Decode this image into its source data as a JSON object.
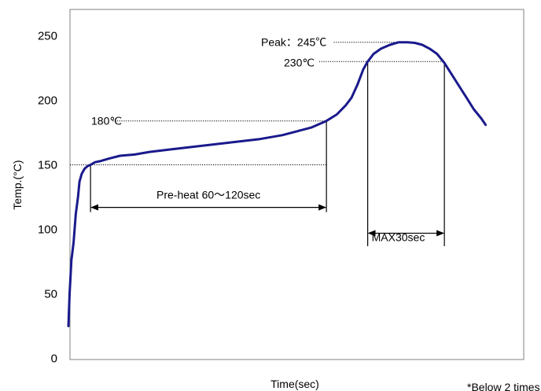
{
  "chart_data": {
    "type": "line",
    "title": "",
    "xlabel": "Time(sec)",
    "ylabel": "Temp.(°C)",
    "ylim": [
      0,
      260
    ],
    "yticks": [
      0,
      50,
      100,
      150,
      200,
      250
    ],
    "grid": false,
    "series": [
      {
        "color": "#1a1a8c",
        "points": [
          [
            0,
            25
          ],
          [
            0.8,
            50
          ],
          [
            2,
            76
          ],
          [
            3.5,
            90
          ],
          [
            5,
            112
          ],
          [
            6.5,
            125
          ],
          [
            7.5,
            137
          ],
          [
            9,
            143
          ],
          [
            11,
            147
          ],
          [
            13,
            149
          ],
          [
            15,
            150
          ],
          [
            18,
            152
          ],
          [
            22,
            153
          ],
          [
            28,
            155
          ],
          [
            35,
            157
          ],
          [
            45,
            158
          ],
          [
            55,
            160
          ],
          [
            70,
            162
          ],
          [
            85,
            164
          ],
          [
            100,
            166
          ],
          [
            115,
            168
          ],
          [
            130,
            170
          ],
          [
            145,
            173
          ],
          [
            155,
            176
          ],
          [
            165,
            179
          ],
          [
            175,
            184
          ],
          [
            182,
            189
          ],
          [
            188,
            196
          ],
          [
            192,
            202
          ],
          [
            196,
            212
          ],
          [
            200,
            224
          ],
          [
            203,
            230
          ],
          [
            207,
            236
          ],
          [
            212,
            240
          ],
          [
            218,
            243
          ],
          [
            224,
            245
          ],
          [
            230,
            245
          ],
          [
            235,
            244.5
          ],
          [
            240,
            243
          ],
          [
            245,
            240
          ],
          [
            250,
            236
          ],
          [
            255,
            229
          ],
          [
            260,
            220
          ],
          [
            265,
            211
          ],
          [
            270,
            202
          ],
          [
            275,
            193
          ],
          [
            280,
            186
          ],
          [
            283,
            181
          ]
        ]
      }
    ],
    "reference_lines": {
      "preheat_start": {
        "temp": 150,
        "time": 15
      },
      "preheat_end": {
        "temp": 184,
        "time": 175
      },
      "liquidus_start": {
        "temp": 230,
        "time": 203
      },
      "liquidus_end": {
        "temp": 230,
        "time": 255
      },
      "peak": {
        "temp": 245,
        "time": 227
      }
    },
    "annotations": {
      "peak": "Peak：245℃",
      "liquidus": "230℃",
      "preheat_temp": "180℃",
      "preheat_range": "Pre-heat  60～120sec",
      "max_time": "MAX30sec",
      "note": "*Below 2 times"
    }
  }
}
